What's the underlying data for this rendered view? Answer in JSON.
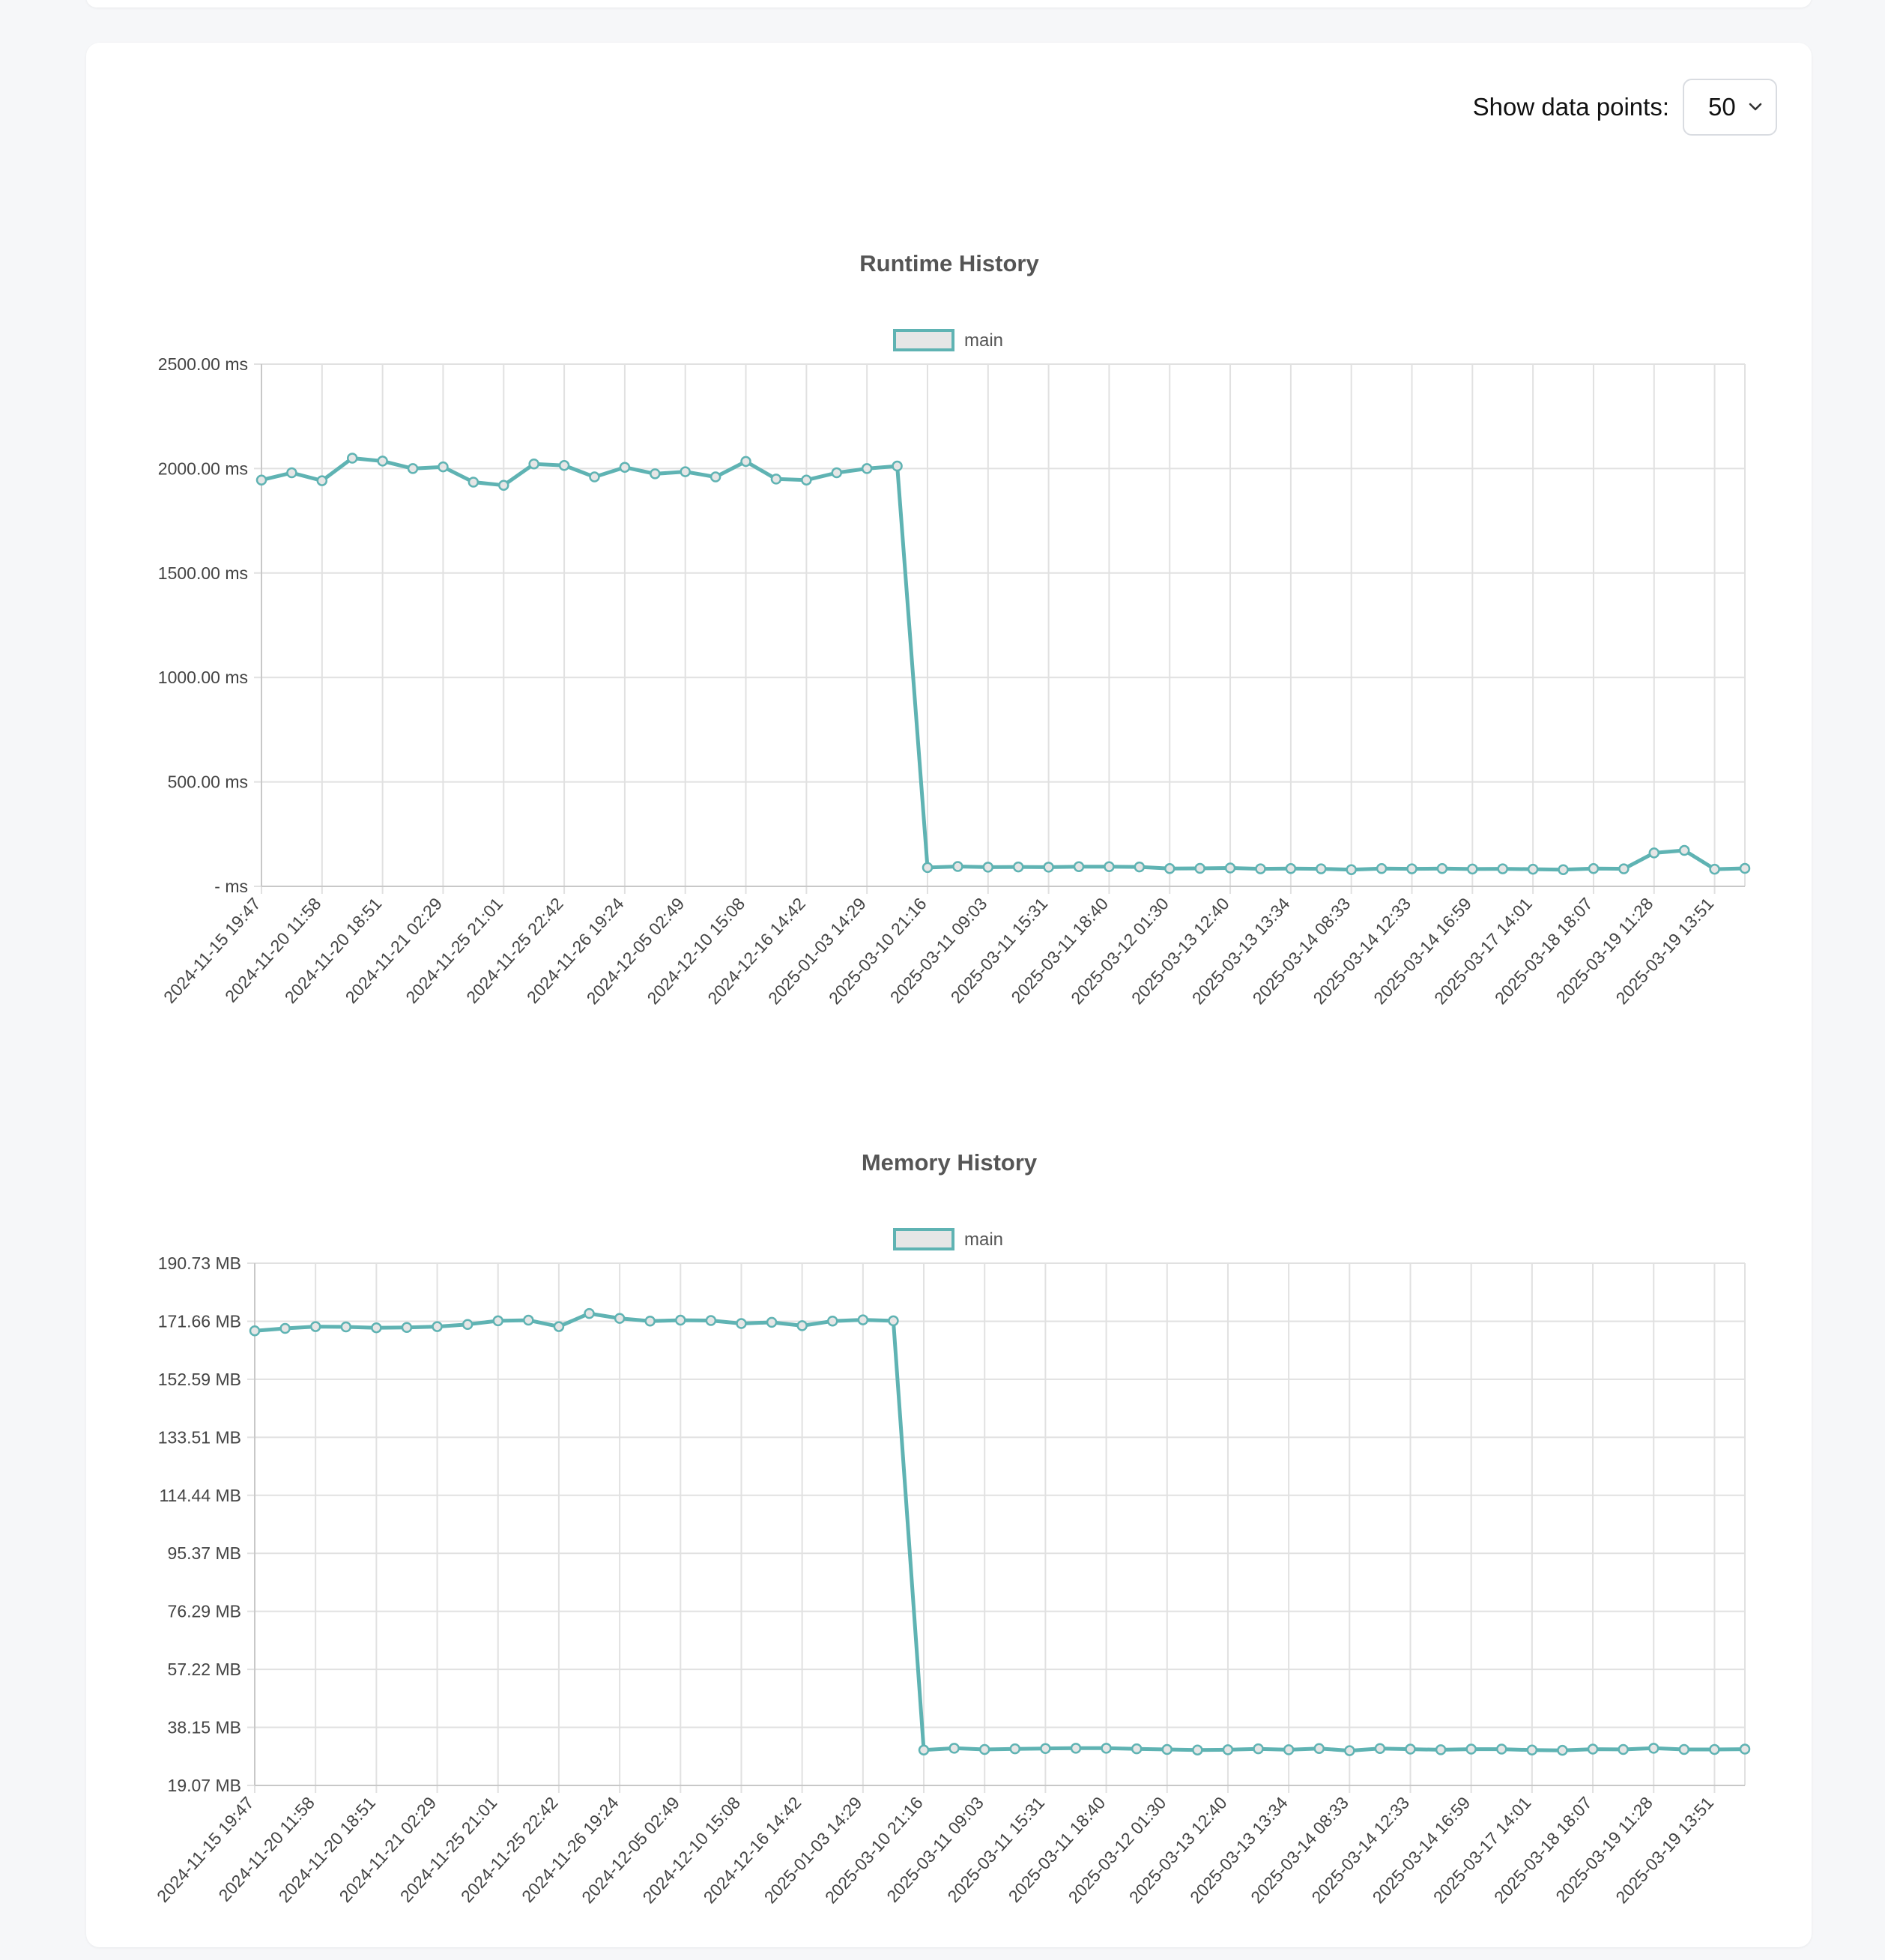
{
  "controls": {
    "label": "Show data points:",
    "selected": "50"
  },
  "colors": {
    "series": "#5fb3b3",
    "grid": "#e1e1e1",
    "legend_fill": "#e6e6e6"
  },
  "x_tick_labels": [
    "2024-11-15 19:47",
    "2024-11-20 11:58",
    "2024-11-20 18:51",
    "2024-11-21 02:29",
    "2024-11-25 21:01",
    "2024-11-25 22:42",
    "2024-11-26 19:24",
    "2024-12-05 02:49",
    "2024-12-10 15:08",
    "2024-12-16 14:42",
    "2025-01-03 14:29",
    "2025-03-10 21:16",
    "2025-03-11 09:03",
    "2025-03-11 15:31",
    "2025-03-11 18:40",
    "2025-03-12 01:30",
    "2025-03-13 12:40",
    "2025-03-13 13:34",
    "2025-03-14 08:33",
    "2025-03-14 12:33",
    "2025-03-14 16:59",
    "2025-03-17 14:01",
    "2025-03-18 18:07",
    "2025-03-19 11:28",
    "2025-03-19 13:51"
  ],
  "chart_data": [
    {
      "type": "line",
      "title": "Runtime History",
      "legend": "main",
      "legend_position": "top-center",
      "grid": true,
      "y_tick_labels": [
        "- ms",
        "500.00 ms",
        "1000.00 ms",
        "1500.00 ms",
        "2000.00 ms",
        "2500.00 ms"
      ],
      "ylim": [
        0,
        2500
      ],
      "series": [
        {
          "name": "main",
          "values": [
            1945,
            1980,
            1942,
            2050,
            2036,
            2000,
            2008,
            1935,
            1920,
            2022,
            2015,
            1960,
            2006,
            1975,
            1985,
            1960,
            2034,
            1950,
            1945,
            1980,
            2000,
            2012,
            90,
            95,
            92,
            93,
            92,
            94,
            94,
            93,
            85,
            86,
            88,
            84,
            85,
            84,
            80,
            85,
            84,
            85,
            83,
            84,
            82,
            80,
            85,
            84,
            160,
            172,
            82,
            86
          ]
        }
      ]
    },
    {
      "type": "line",
      "title": "Memory History",
      "legend": "main",
      "legend_position": "top-center",
      "grid": true,
      "y_tick_labels": [
        "19.07 MB",
        "38.15 MB",
        "57.22 MB",
        "76.29 MB",
        "95.37 MB",
        "114.44 MB",
        "133.51 MB",
        "152.59 MB",
        "171.66 MB",
        "190.73 MB"
      ],
      "ylim": [
        19.07,
        190.73
      ],
      "series": [
        {
          "name": "main",
          "values": [
            168.5,
            169.3,
            169.9,
            169.8,
            169.5,
            169.6,
            169.9,
            170.6,
            171.8,
            172.0,
            169.9,
            174.2,
            172.6,
            171.7,
            172.0,
            171.9,
            170.9,
            171.3,
            170.2,
            171.7,
            172.1,
            171.8,
            30.7,
            31.3,
            30.9,
            31.1,
            31.2,
            31.3,
            31.3,
            31.1,
            30.9,
            30.7,
            30.8,
            31.1,
            30.8,
            31.2,
            30.5,
            31.2,
            31.0,
            30.8,
            31.0,
            31.0,
            30.7,
            30.6,
            31.0,
            30.9,
            31.3,
            30.9,
            30.9,
            31.0
          ]
        }
      ]
    }
  ]
}
